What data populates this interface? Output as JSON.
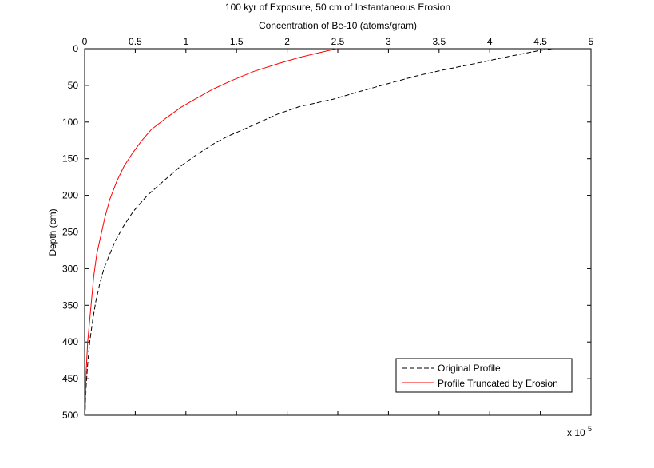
{
  "chart_data": {
    "type": "line",
    "title": "100 kyr of Exposure, 50 cm of Instantaneous Erosion",
    "xlabel": "Concentration of Be-10 (atoms/gram)",
    "ylabel": "Depth (cm)",
    "x_axis_position": "top",
    "y_axis_direction": "reversed",
    "xlim": [
      0,
      500000
    ],
    "ylim": [
      0,
      500
    ],
    "x_exponent_label": "x 10",
    "x_exponent_power": "5",
    "x_ticks": [
      {
        "value": 0,
        "label": "0"
      },
      {
        "value": 50000,
        "label": "0.5"
      },
      {
        "value": 100000,
        "label": "1"
      },
      {
        "value": 150000,
        "label": "1.5"
      },
      {
        "value": 200000,
        "label": "2"
      },
      {
        "value": 250000,
        "label": "2.5"
      },
      {
        "value": 300000,
        "label": "3"
      },
      {
        "value": 350000,
        "label": "3.5"
      },
      {
        "value": 400000,
        "label": "4"
      },
      {
        "value": 450000,
        "label": "4.5"
      },
      {
        "value": 500000,
        "label": "5"
      }
    ],
    "y_ticks": [
      {
        "value": 0,
        "label": "0"
      },
      {
        "value": 50,
        "label": "50"
      },
      {
        "value": 100,
        "label": "100"
      },
      {
        "value": 150,
        "label": "150"
      },
      {
        "value": 200,
        "label": "200"
      },
      {
        "value": 250,
        "label": "250"
      },
      {
        "value": 300,
        "label": "300"
      },
      {
        "value": 350,
        "label": "350"
      },
      {
        "value": 400,
        "label": "400"
      },
      {
        "value": 450,
        "label": "450"
      },
      {
        "value": 500,
        "label": "500"
      }
    ],
    "legend_position": "bottom-right",
    "series": [
      {
        "name": "Original Profile",
        "color": "#000000",
        "style": "dashed",
        "x": [
          462000,
          451000,
          421000,
          390000,
          354000,
          328000,
          296000,
          270000,
          245000,
          212000,
          191000,
          178000,
          162000,
          142000,
          127000,
          110000,
          95000,
          80000,
          62000,
          48000,
          38000,
          30000,
          24000,
          19000,
          15000,
          11000,
          8000,
          5000,
          3000,
          1500,
          500
        ],
        "y": [
          0,
          2,
          10,
          19,
          29,
          37,
          49,
          59,
          69,
          79,
          89,
          97,
          107,
          119,
          130,
          145,
          160,
          178,
          200,
          222,
          243,
          263,
          283,
          300,
          320,
          345,
          370,
          400,
          430,
          460,
          495
        ]
      },
      {
        "name": "Profile Truncated by Erosion",
        "color": "#ff0000",
        "style": "solid",
        "x": [
          249000,
          233000,
          212000,
          192000,
          167000,
          146000,
          127000,
          110000,
          95000,
          80000,
          66000,
          56000,
          47000,
          39000,
          32000,
          25000,
          20000,
          16000,
          12000,
          9000,
          7000,
          5000,
          3000,
          1500,
          500
        ],
        "y": [
          0,
          5,
          12,
          20,
          31,
          43,
          55,
          68,
          80,
          95,
          110,
          126,
          143,
          160,
          180,
          205,
          230,
          255,
          280,
          310,
          340,
          370,
          400,
          440,
          495
        ]
      }
    ]
  }
}
